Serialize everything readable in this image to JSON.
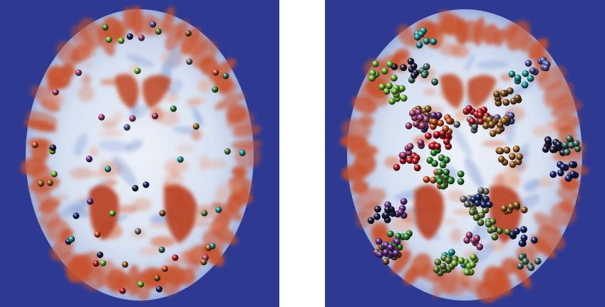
{
  "panels": [
    {
      "id": "left",
      "view": "axial-brain-slice-sparse-electrodes",
      "background_color": "#2e3a92",
      "tissue_colors": {
        "white_matter": "#dce4f2",
        "cortex": "#c8502a",
        "edge": "#6f85c8"
      }
    },
    {
      "id": "right",
      "view": "axial-brain-slice-dense-electrodes",
      "background_color": "#2e3a92",
      "tissue_colors": {
        "white_matter": "#dce4f2",
        "cortex": "#c8502a",
        "edge": "#6f85c8"
      }
    }
  ],
  "colors": {
    "white": "#ffffff",
    "deep_blue": "#2e3a92",
    "marker_palette": [
      "#1c2a6e",
      "#3b8f3a",
      "#6b8a3c",
      "#8a5a2a",
      "#6a3a8f",
      "#2a9b9b",
      "#c81e2a",
      "#222244",
      "#a36a2c",
      "#4a7a6a",
      "#7fbf3f",
      "#b04a7a",
      "#5a5aa8",
      "#d85a2a",
      "#808080"
    ]
  }
}
